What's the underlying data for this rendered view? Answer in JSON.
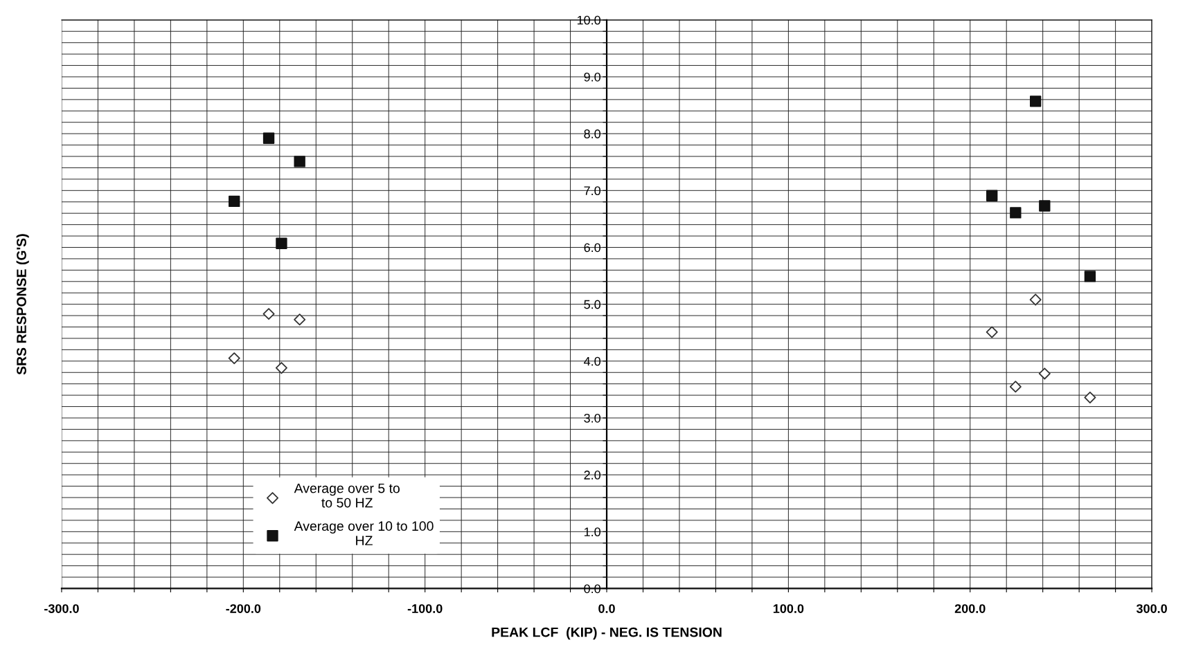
{
  "chart_data": {
    "type": "scatter",
    "xlabel": "PEAK LCF  (KIP) - NEG. IS TENSION",
    "ylabel": "SRS RESPONSE (G'S)",
    "xlim": [
      -300,
      300
    ],
    "ylim": [
      0,
      10
    ],
    "xticks": [
      {
        "value": -300,
        "label": "-300.0"
      },
      {
        "value": -280,
        "label": null
      },
      {
        "value": -260,
        "label": null
      },
      {
        "value": -240,
        "label": null
      },
      {
        "value": -220,
        "label": null
      },
      {
        "value": -200,
        "label": "-200.0"
      },
      {
        "value": -180,
        "label": null
      },
      {
        "value": -160,
        "label": null
      },
      {
        "value": -140,
        "label": null
      },
      {
        "value": -120,
        "label": null
      },
      {
        "value": -100,
        "label": "-100.0"
      },
      {
        "value": -80,
        "label": null
      },
      {
        "value": -60,
        "label": null
      },
      {
        "value": -40,
        "label": null
      },
      {
        "value": -20,
        "label": null
      },
      {
        "value": 0,
        "label": "0.0"
      },
      {
        "value": 20,
        "label": null
      },
      {
        "value": 40,
        "label": null
      },
      {
        "value": 60,
        "label": null
      },
      {
        "value": 80,
        "label": null
      },
      {
        "value": 100,
        "label": "100.0"
      },
      {
        "value": 120,
        "label": null
      },
      {
        "value": 140,
        "label": null
      },
      {
        "value": 160,
        "label": null
      },
      {
        "value": 180,
        "label": null
      },
      {
        "value": 200,
        "label": "200.0"
      },
      {
        "value": 220,
        "label": null
      },
      {
        "value": 240,
        "label": null
      },
      {
        "value": 260,
        "label": null
      },
      {
        "value": 280,
        "label": null
      },
      {
        "value": 300,
        "label": "300.0"
      }
    ],
    "yticks": [
      {
        "value": 0,
        "label": "0.0"
      },
      {
        "value": 0.2,
        "label": null
      },
      {
        "value": 0.4,
        "label": null
      },
      {
        "value": 0.6,
        "label": null
      },
      {
        "value": 0.8,
        "label": null
      },
      {
        "value": 1,
        "label": "1.0"
      },
      {
        "value": 1.2,
        "label": null
      },
      {
        "value": 1.4,
        "label": null
      },
      {
        "value": 1.6,
        "label": null
      },
      {
        "value": 1.8,
        "label": null
      },
      {
        "value": 2,
        "label": "2.0"
      },
      {
        "value": 2.2,
        "label": null
      },
      {
        "value": 2.4,
        "label": null
      },
      {
        "value": 2.6,
        "label": null
      },
      {
        "value": 2.8,
        "label": null
      },
      {
        "value": 3,
        "label": "3.0"
      },
      {
        "value": 3.2,
        "label": null
      },
      {
        "value": 3.4,
        "label": null
      },
      {
        "value": 3.6,
        "label": null
      },
      {
        "value": 3.8,
        "label": null
      },
      {
        "value": 4,
        "label": "4.0"
      },
      {
        "value": 4.2,
        "label": null
      },
      {
        "value": 4.4,
        "label": null
      },
      {
        "value": 4.6,
        "label": null
      },
      {
        "value": 4.8,
        "label": null
      },
      {
        "value": 5,
        "label": "5.0"
      },
      {
        "value": 5.2,
        "label": null
      },
      {
        "value": 5.4,
        "label": null
      },
      {
        "value": 5.6,
        "label": null
      },
      {
        "value": 5.8,
        "label": null
      },
      {
        "value": 6,
        "label": "6.0"
      },
      {
        "value": 6.2,
        "label": null
      },
      {
        "value": 6.4,
        "label": null
      },
      {
        "value": 6.6,
        "label": null
      },
      {
        "value": 6.8,
        "label": null
      },
      {
        "value": 7,
        "label": "7.0"
      },
      {
        "value": 7.2,
        "label": null
      },
      {
        "value": 7.4,
        "label": null
      },
      {
        "value": 7.6,
        "label": null
      },
      {
        "value": 7.8,
        "label": null
      },
      {
        "value": 8,
        "label": "8.0"
      },
      {
        "value": 8.2,
        "label": null
      },
      {
        "value": 8.4,
        "label": null
      },
      {
        "value": 8.6,
        "label": null
      },
      {
        "value": 8.8,
        "label": null
      },
      {
        "value": 9,
        "label": "9.0"
      },
      {
        "value": 9.2,
        "label": null
      },
      {
        "value": 9.4,
        "label": null
      },
      {
        "value": 9.6,
        "label": null
      },
      {
        "value": 9.8,
        "label": null
      },
      {
        "value": 10,
        "label": "10.0"
      }
    ],
    "grid": true,
    "legend": "bottom left",
    "series": [
      {
        "name": "Average over 5 to\nto 50 HZ",
        "color": "#333333",
        "marker": "diamond",
        "x": [
          -205,
          -186,
          -169,
          -179,
          212,
          236,
          225,
          241,
          266
        ],
        "values": [
          4.05,
          4.83,
          4.73,
          3.88,
          4.51,
          5.08,
          3.55,
          3.78,
          3.36
        ]
      },
      {
        "name": "Average over 10 to 100\nHZ",
        "color": "#111111",
        "marker": "square",
        "x": [
          -205,
          -186,
          -169,
          -179,
          212,
          236,
          225,
          241,
          266
        ],
        "values": [
          6.81,
          7.92,
          7.51,
          6.07,
          6.91,
          8.57,
          6.61,
          6.73,
          5.49
        ]
      }
    ]
  }
}
